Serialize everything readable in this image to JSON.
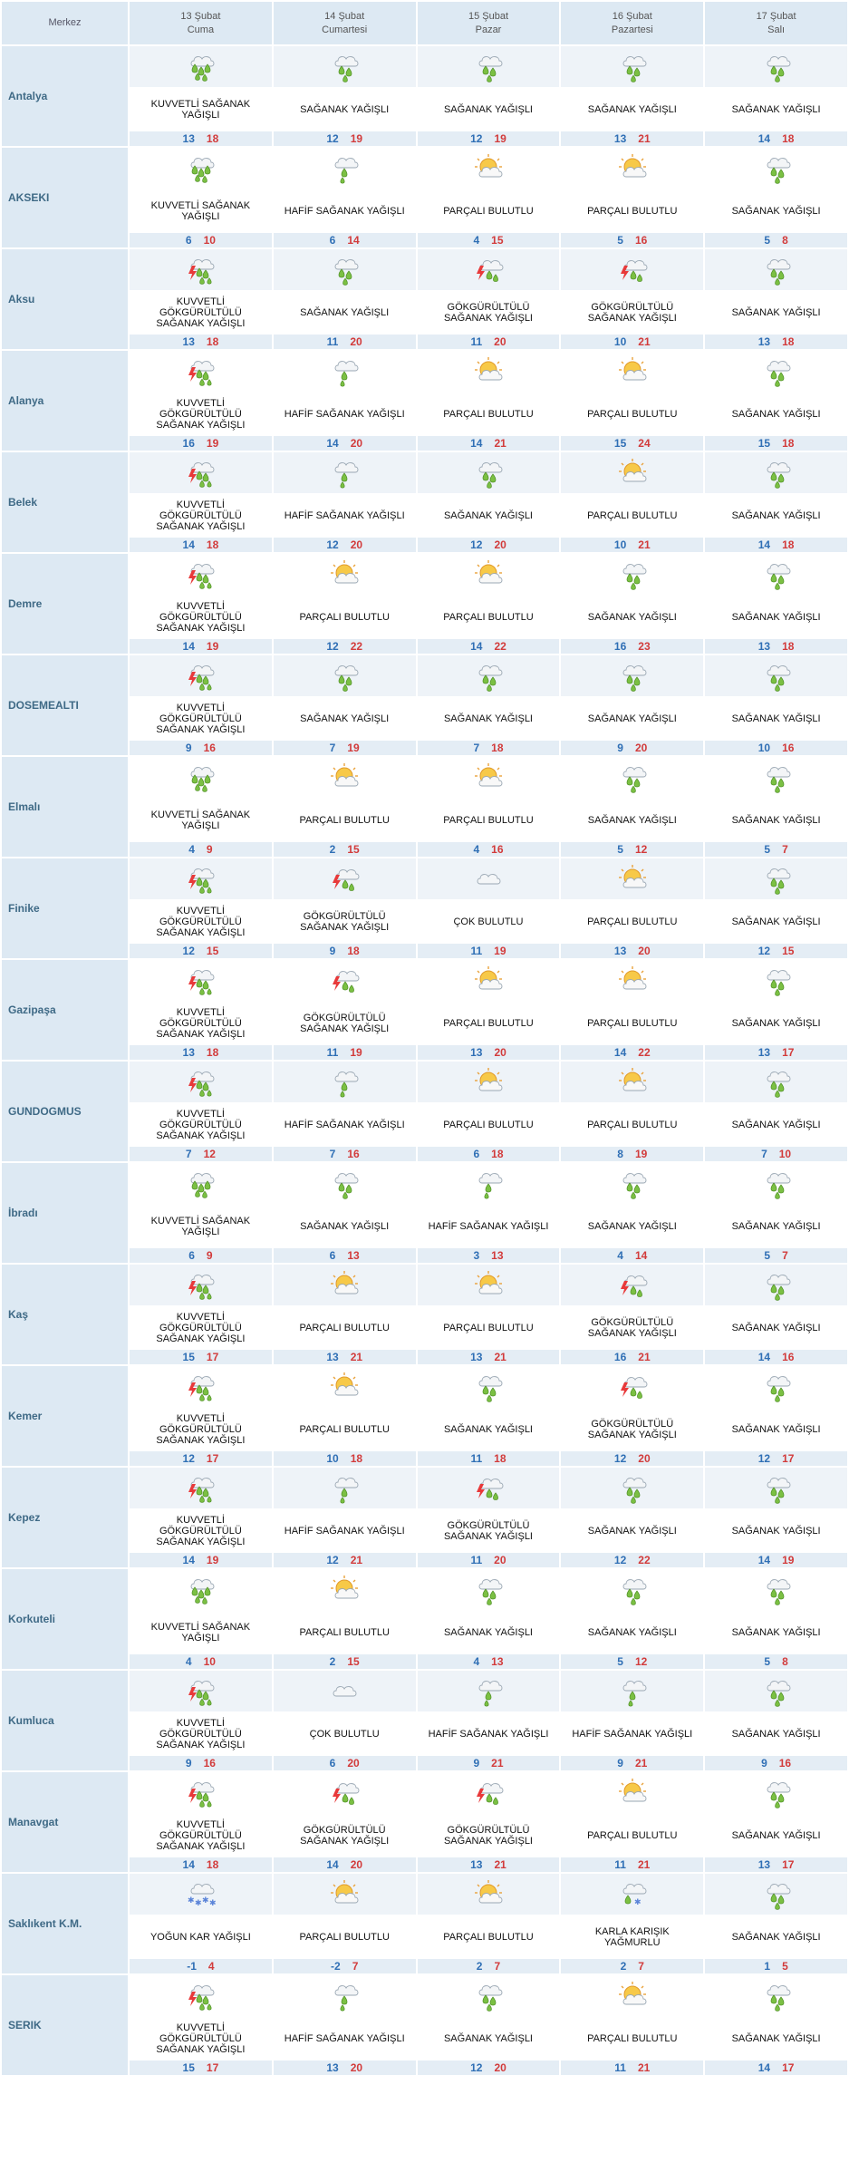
{
  "header": {
    "merkez": "Merkez",
    "days": [
      {
        "date": "13 Şubat",
        "name": "Cuma"
      },
      {
        "date": "14 Şubat",
        "name": "Cumartesi"
      },
      {
        "date": "15 Şubat",
        "name": "Pazar"
      },
      {
        "date": "16 Şubat",
        "name": "Pazartesi"
      },
      {
        "date": "17 Şubat",
        "name": "Salı"
      }
    ]
  },
  "colors": {
    "accent_header_bg": "#dde9f3",
    "min_temp": "#2f6fb5",
    "max_temp": "#d23b3b",
    "drop": "#7bc043"
  },
  "rows": [
    {
      "city": "Antalya",
      "days": [
        {
          "icon": "heavy-rain-icon",
          "desc": "KUVVETLİ SAĞANAK YAĞIŞLI",
          "min": "13",
          "max": "18"
        },
        {
          "icon": "rain-shower-icon",
          "desc": "SAĞANAK YAĞIŞLI",
          "min": "12",
          "max": "19"
        },
        {
          "icon": "rain-shower-icon",
          "desc": "SAĞANAK YAĞIŞLI",
          "min": "12",
          "max": "19"
        },
        {
          "icon": "rain-shower-icon",
          "desc": "SAĞANAK YAĞIŞLI",
          "min": "13",
          "max": "21"
        },
        {
          "icon": "rain-shower-icon",
          "desc": "SAĞANAK YAĞIŞLI",
          "min": "14",
          "max": "18"
        }
      ]
    },
    {
      "city": "AKSEKI",
      "days": [
        {
          "icon": "heavy-rain-icon",
          "desc": "KUVVETLİ SAĞANAK YAĞIŞLI",
          "min": "6",
          "max": "10"
        },
        {
          "icon": "light-rain-icon",
          "desc": "HAFİF SAĞANAK YAĞIŞLI",
          "min": "6",
          "max": "14"
        },
        {
          "icon": "partly-cloudy-icon",
          "desc": "PARÇALI BULUTLU",
          "min": "4",
          "max": "15"
        },
        {
          "icon": "partly-cloudy-icon",
          "desc": "PARÇALI BULUTLU",
          "min": "5",
          "max": "16"
        },
        {
          "icon": "rain-shower-icon",
          "desc": "SAĞANAK YAĞIŞLI",
          "min": "5",
          "max": "8"
        }
      ]
    },
    {
      "city": "Aksu",
      "days": [
        {
          "icon": "heavy-thunderstorm-icon",
          "desc": "KUVVETLİ GÖKGÜRÜLTÜLÜ SAĞANAK YAĞIŞLI",
          "min": "13",
          "max": "18"
        },
        {
          "icon": "rain-shower-icon",
          "desc": "SAĞANAK YAĞIŞLI",
          "min": "11",
          "max": "20"
        },
        {
          "icon": "thunderstorm-icon",
          "desc": "GÖKGÜRÜLTÜLÜ SAĞANAK YAĞIŞLI",
          "min": "11",
          "max": "20"
        },
        {
          "icon": "thunderstorm-icon",
          "desc": "GÖKGÜRÜLTÜLÜ SAĞANAK YAĞIŞLI",
          "min": "10",
          "max": "21"
        },
        {
          "icon": "rain-shower-icon",
          "desc": "SAĞANAK YAĞIŞLI",
          "min": "13",
          "max": "18"
        }
      ]
    },
    {
      "city": "Alanya",
      "days": [
        {
          "icon": "heavy-thunderstorm-icon",
          "desc": "KUVVETLİ GÖKGÜRÜLTÜLÜ SAĞANAK YAĞIŞLI",
          "min": "16",
          "max": "19"
        },
        {
          "icon": "light-rain-icon",
          "desc": "HAFİF SAĞANAK YAĞIŞLI",
          "min": "14",
          "max": "20"
        },
        {
          "icon": "partly-cloudy-icon",
          "desc": "PARÇALI BULUTLU",
          "min": "14",
          "max": "21"
        },
        {
          "icon": "partly-cloudy-icon",
          "desc": "PARÇALI BULUTLU",
          "min": "15",
          "max": "24"
        },
        {
          "icon": "rain-shower-icon",
          "desc": "SAĞANAK YAĞIŞLI",
          "min": "15",
          "max": "18"
        }
      ]
    },
    {
      "city": "Belek",
      "days": [
        {
          "icon": "heavy-thunderstorm-icon",
          "desc": "KUVVETLİ GÖKGÜRÜLTÜLÜ SAĞANAK YAĞIŞLI",
          "min": "14",
          "max": "18"
        },
        {
          "icon": "light-rain-icon",
          "desc": "HAFİF SAĞANAK YAĞIŞLI",
          "min": "12",
          "max": "20"
        },
        {
          "icon": "rain-shower-icon",
          "desc": "SAĞANAK YAĞIŞLI",
          "min": "12",
          "max": "20"
        },
        {
          "icon": "partly-cloudy-icon",
          "desc": "PARÇALI BULUTLU",
          "min": "10",
          "max": "21"
        },
        {
          "icon": "rain-shower-icon",
          "desc": "SAĞANAK YAĞIŞLI",
          "min": "14",
          "max": "18"
        }
      ]
    },
    {
      "city": "Demre",
      "days": [
        {
          "icon": "heavy-thunderstorm-icon",
          "desc": "KUVVETLİ GÖKGÜRÜLTÜLÜ SAĞANAK YAĞIŞLI",
          "min": "14",
          "max": "19"
        },
        {
          "icon": "partly-cloudy-icon",
          "desc": "PARÇALI BULUTLU",
          "min": "12",
          "max": "22"
        },
        {
          "icon": "partly-cloudy-icon",
          "desc": "PARÇALI BULUTLU",
          "min": "14",
          "max": "22"
        },
        {
          "icon": "rain-shower-icon",
          "desc": "SAĞANAK YAĞIŞLI",
          "min": "16",
          "max": "23"
        },
        {
          "icon": "rain-shower-icon",
          "desc": "SAĞANAK YAĞIŞLI",
          "min": "13",
          "max": "18"
        }
      ]
    },
    {
      "city": "DOSEMEALTI",
      "days": [
        {
          "icon": "heavy-thunderstorm-icon",
          "desc": "KUVVETLİ GÖKGÜRÜLTÜLÜ SAĞANAK YAĞIŞLI",
          "min": "9",
          "max": "16"
        },
        {
          "icon": "rain-shower-icon",
          "desc": "SAĞANAK YAĞIŞLI",
          "min": "7",
          "max": "19"
        },
        {
          "icon": "rain-shower-icon",
          "desc": "SAĞANAK YAĞIŞLI",
          "min": "7",
          "max": "18"
        },
        {
          "icon": "rain-shower-icon",
          "desc": "SAĞANAK YAĞIŞLI",
          "min": "9",
          "max": "20"
        },
        {
          "icon": "rain-shower-icon",
          "desc": "SAĞANAK YAĞIŞLI",
          "min": "10",
          "max": "16"
        }
      ]
    },
    {
      "city": "Elmalı",
      "days": [
        {
          "icon": "heavy-rain-icon",
          "desc": "KUVVETLİ SAĞANAK YAĞIŞLI",
          "min": "4",
          "max": "9"
        },
        {
          "icon": "partly-cloudy-icon",
          "desc": "PARÇALI BULUTLU",
          "min": "2",
          "max": "15"
        },
        {
          "icon": "partly-cloudy-icon",
          "desc": "PARÇALI BULUTLU",
          "min": "4",
          "max": "16"
        },
        {
          "icon": "rain-shower-icon",
          "desc": "SAĞANAK YAĞIŞLI",
          "min": "5",
          "max": "12"
        },
        {
          "icon": "rain-shower-icon",
          "desc": "SAĞANAK YAĞIŞLI",
          "min": "5",
          "max": "7"
        }
      ]
    },
    {
      "city": "Finike",
      "days": [
        {
          "icon": "heavy-thunderstorm-icon",
          "desc": "KUVVETLİ GÖKGÜRÜLTÜLÜ SAĞANAK YAĞIŞLI",
          "min": "12",
          "max": "15"
        },
        {
          "icon": "thunderstorm-icon",
          "desc": "GÖKGÜRÜLTÜLÜ SAĞANAK YAĞIŞLI",
          "min": "9",
          "max": "18"
        },
        {
          "icon": "cloudy-icon",
          "desc": "ÇOK BULUTLU",
          "min": "11",
          "max": "19"
        },
        {
          "icon": "partly-cloudy-icon",
          "desc": "PARÇALI BULUTLU",
          "min": "13",
          "max": "20"
        },
        {
          "icon": "rain-shower-icon",
          "desc": "SAĞANAK YAĞIŞLI",
          "min": "12",
          "max": "15"
        }
      ]
    },
    {
      "city": "Gazipaşa",
      "days": [
        {
          "icon": "heavy-thunderstorm-icon",
          "desc": "KUVVETLİ GÖKGÜRÜLTÜLÜ SAĞANAK YAĞIŞLI",
          "min": "13",
          "max": "18"
        },
        {
          "icon": "thunderstorm-icon",
          "desc": "GÖKGÜRÜLTÜLÜ SAĞANAK YAĞIŞLI",
          "min": "11",
          "max": "19"
        },
        {
          "icon": "partly-cloudy-icon",
          "desc": "PARÇALI BULUTLU",
          "min": "13",
          "max": "20"
        },
        {
          "icon": "partly-cloudy-icon",
          "desc": "PARÇALI BULUTLU",
          "min": "14",
          "max": "22"
        },
        {
          "icon": "rain-shower-icon",
          "desc": "SAĞANAK YAĞIŞLI",
          "min": "13",
          "max": "17"
        }
      ]
    },
    {
      "city": "GUNDOGMUS",
      "days": [
        {
          "icon": "heavy-thunderstorm-icon",
          "desc": "KUVVETLİ GÖKGÜRÜLTÜLÜ SAĞANAK YAĞIŞLI",
          "min": "7",
          "max": "12"
        },
        {
          "icon": "light-rain-icon",
          "desc": "HAFİF SAĞANAK YAĞIŞLI",
          "min": "7",
          "max": "16"
        },
        {
          "icon": "partly-cloudy-icon",
          "desc": "PARÇALI BULUTLU",
          "min": "6",
          "max": "18"
        },
        {
          "icon": "partly-cloudy-icon",
          "desc": "PARÇALI BULUTLU",
          "min": "8",
          "max": "19"
        },
        {
          "icon": "rain-shower-icon",
          "desc": "SAĞANAK YAĞIŞLI",
          "min": "7",
          "max": "10"
        }
      ]
    },
    {
      "city": "İbradı",
      "days": [
        {
          "icon": "heavy-rain-icon",
          "desc": "KUVVETLİ SAĞANAK YAĞIŞLI",
          "min": "6",
          "max": "9"
        },
        {
          "icon": "rain-shower-icon",
          "desc": "SAĞANAK YAĞIŞLI",
          "min": "6",
          "max": "13"
        },
        {
          "icon": "light-rain-icon",
          "desc": "HAFİF SAĞANAK YAĞIŞLI",
          "min": "3",
          "max": "13"
        },
        {
          "icon": "rain-shower-icon",
          "desc": "SAĞANAK YAĞIŞLI",
          "min": "4",
          "max": "14"
        },
        {
          "icon": "rain-shower-icon",
          "desc": "SAĞANAK YAĞIŞLI",
          "min": "5",
          "max": "7"
        }
      ]
    },
    {
      "city": "Kaş",
      "days": [
        {
          "icon": "heavy-thunderstorm-icon",
          "desc": "KUVVETLİ GÖKGÜRÜLTÜLÜ SAĞANAK YAĞIŞLI",
          "min": "15",
          "max": "17"
        },
        {
          "icon": "partly-cloudy-icon",
          "desc": "PARÇALI BULUTLU",
          "min": "13",
          "max": "21"
        },
        {
          "icon": "partly-cloudy-icon",
          "desc": "PARÇALI BULUTLU",
          "min": "13",
          "max": "21"
        },
        {
          "icon": "thunderstorm-icon",
          "desc": "GÖKGÜRÜLTÜLÜ SAĞANAK YAĞIŞLI",
          "min": "16",
          "max": "21"
        },
        {
          "icon": "rain-shower-icon",
          "desc": "SAĞANAK YAĞIŞLI",
          "min": "14",
          "max": "16"
        }
      ]
    },
    {
      "city": "Kemer",
      "days": [
        {
          "icon": "heavy-thunderstorm-icon",
          "desc": "KUVVETLİ GÖKGÜRÜLTÜLÜ SAĞANAK YAĞIŞLI",
          "min": "12",
          "max": "17"
        },
        {
          "icon": "partly-cloudy-icon",
          "desc": "PARÇALI BULUTLU",
          "min": "10",
          "max": "18"
        },
        {
          "icon": "rain-shower-icon",
          "desc": "SAĞANAK YAĞIŞLI",
          "min": "11",
          "max": "18"
        },
        {
          "icon": "thunderstorm-icon",
          "desc": "GÖKGÜRÜLTÜLÜ SAĞANAK YAĞIŞLI",
          "min": "12",
          "max": "20"
        },
        {
          "icon": "rain-shower-icon",
          "desc": "SAĞANAK YAĞIŞLI",
          "min": "12",
          "max": "17"
        }
      ]
    },
    {
      "city": "Kepez",
      "days": [
        {
          "icon": "heavy-thunderstorm-icon",
          "desc": "KUVVETLİ GÖKGÜRÜLTÜLÜ SAĞANAK YAĞIŞLI",
          "min": "14",
          "max": "19"
        },
        {
          "icon": "light-rain-icon",
          "desc": "HAFİF SAĞANAK YAĞIŞLI",
          "min": "12",
          "max": "21"
        },
        {
          "icon": "thunderstorm-icon",
          "desc": "GÖKGÜRÜLTÜLÜ SAĞANAK YAĞIŞLI",
          "min": "11",
          "max": "20"
        },
        {
          "icon": "rain-shower-icon",
          "desc": "SAĞANAK YAĞIŞLI",
          "min": "12",
          "max": "22"
        },
        {
          "icon": "rain-shower-icon",
          "desc": "SAĞANAK YAĞIŞLI",
          "min": "14",
          "max": "19"
        }
      ]
    },
    {
      "city": "Korkuteli",
      "days": [
        {
          "icon": "heavy-rain-icon",
          "desc": "KUVVETLİ SAĞANAK YAĞIŞLI",
          "min": "4",
          "max": "10"
        },
        {
          "icon": "partly-cloudy-icon",
          "desc": "PARÇALI BULUTLU",
          "min": "2",
          "max": "15"
        },
        {
          "icon": "rain-shower-icon",
          "desc": "SAĞANAK YAĞIŞLI",
          "min": "4",
          "max": "13"
        },
        {
          "icon": "rain-shower-icon",
          "desc": "SAĞANAK YAĞIŞLI",
          "min": "5",
          "max": "12"
        },
        {
          "icon": "rain-shower-icon",
          "desc": "SAĞANAK YAĞIŞLI",
          "min": "5",
          "max": "8"
        }
      ]
    },
    {
      "city": "Kumluca",
      "days": [
        {
          "icon": "heavy-thunderstorm-icon",
          "desc": "KUVVETLİ GÖKGÜRÜLTÜLÜ SAĞANAK YAĞIŞLI",
          "min": "9",
          "max": "16"
        },
        {
          "icon": "cloudy-icon",
          "desc": "ÇOK BULUTLU",
          "min": "6",
          "max": "20"
        },
        {
          "icon": "light-rain-icon",
          "desc": "HAFİF SAĞANAK YAĞIŞLI",
          "min": "9",
          "max": "21"
        },
        {
          "icon": "light-rain-icon",
          "desc": "HAFİF SAĞANAK YAĞIŞLI",
          "min": "9",
          "max": "21"
        },
        {
          "icon": "rain-shower-icon",
          "desc": "SAĞANAK YAĞIŞLI",
          "min": "9",
          "max": "16"
        }
      ]
    },
    {
      "city": "Manavgat",
      "days": [
        {
          "icon": "heavy-thunderstorm-icon",
          "desc": "KUVVETLİ GÖKGÜRÜLTÜLÜ SAĞANAK YAĞIŞLI",
          "min": "14",
          "max": "18"
        },
        {
          "icon": "thunderstorm-icon",
          "desc": "GÖKGÜRÜLTÜLÜ SAĞANAK YAĞIŞLI",
          "min": "14",
          "max": "20"
        },
        {
          "icon": "thunderstorm-icon",
          "desc": "GÖKGÜRÜLTÜLÜ SAĞANAK YAĞIŞLI",
          "min": "13",
          "max": "21"
        },
        {
          "icon": "partly-cloudy-icon",
          "desc": "PARÇALI BULUTLU",
          "min": "11",
          "max": "21"
        },
        {
          "icon": "rain-shower-icon",
          "desc": "SAĞANAK YAĞIŞLI",
          "min": "13",
          "max": "17"
        }
      ]
    },
    {
      "city": "Saklıkent K.M.",
      "days": [
        {
          "icon": "heavy-snow-icon",
          "desc": "YOĞUN KAR YAĞIŞLI",
          "min": "-1",
          "max": "4"
        },
        {
          "icon": "partly-cloudy-icon",
          "desc": "PARÇALI BULUTLU",
          "min": "-2",
          "max": "7"
        },
        {
          "icon": "partly-cloudy-icon",
          "desc": "PARÇALI BULUTLU",
          "min": "2",
          "max": "7"
        },
        {
          "icon": "sleet-icon",
          "desc": "KARLA KARIŞIK YAĞMURLU",
          "min": "2",
          "max": "7"
        },
        {
          "icon": "rain-shower-icon",
          "desc": "SAĞANAK YAĞIŞLI",
          "min": "1",
          "max": "5"
        }
      ]
    },
    {
      "city": "SERIK",
      "days": [
        {
          "icon": "heavy-thunderstorm-icon",
          "desc": "KUVVETLİ GÖKGÜRÜLTÜLÜ SAĞANAK YAĞIŞLI",
          "min": "15",
          "max": "17"
        },
        {
          "icon": "light-rain-icon",
          "desc": "HAFİF SAĞANAK YAĞIŞLI",
          "min": "13",
          "max": "20"
        },
        {
          "icon": "rain-shower-icon",
          "desc": "SAĞANAK YAĞIŞLI",
          "min": "12",
          "max": "20"
        },
        {
          "icon": "partly-cloudy-icon",
          "desc": "PARÇALI BULUTLU",
          "min": "11",
          "max": "21"
        },
        {
          "icon": "rain-shower-icon",
          "desc": "SAĞANAK YAĞIŞLI",
          "min": "14",
          "max": "17"
        }
      ]
    }
  ]
}
